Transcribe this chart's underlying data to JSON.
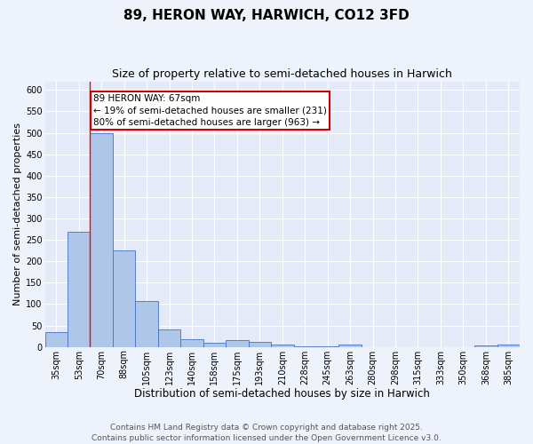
{
  "title": "89, HERON WAY, HARWICH, CO12 3FD",
  "subtitle": "Size of property relative to semi-detached houses in Harwich",
  "xlabel": "Distribution of semi-detached houses by size in Harwich",
  "ylabel": "Number of semi-detached properties",
  "categories": [
    "35sqm",
    "53sqm",
    "70sqm",
    "88sqm",
    "105sqm",
    "123sqm",
    "140sqm",
    "158sqm",
    "175sqm",
    "193sqm",
    "210sqm",
    "228sqm",
    "245sqm",
    "263sqm",
    "280sqm",
    "298sqm",
    "315sqm",
    "333sqm",
    "350sqm",
    "368sqm",
    "385sqm"
  ],
  "values": [
    35,
    268,
    500,
    225,
    108,
    40,
    18,
    10,
    16,
    12,
    5,
    2,
    2,
    5,
    0,
    0,
    0,
    0,
    0,
    4,
    5
  ],
  "bar_color": "#aec6e8",
  "bar_edge_color": "#4472c4",
  "pct_smaller": 19,
  "pct_larger": 80,
  "n_smaller": 231,
  "n_larger": 963,
  "annotation_box_color": "#cc0000",
  "ylim": [
    0,
    620
  ],
  "yticks": [
    0,
    50,
    100,
    150,
    200,
    250,
    300,
    350,
    400,
    450,
    500,
    550,
    600
  ],
  "background_color": "#eef2fb",
  "plot_bg_color": "#e4eaf7",
  "grid_color": "#ffffff",
  "footer_text": "Contains HM Land Registry data © Crown copyright and database right 2025.\nContains public sector information licensed under the Open Government Licence v3.0.",
  "title_fontsize": 11,
  "subtitle_fontsize": 9,
  "xlabel_fontsize": 8.5,
  "ylabel_fontsize": 8,
  "tick_fontsize": 7,
  "footer_fontsize": 6.5,
  "annotation_fontsize": 7.5
}
